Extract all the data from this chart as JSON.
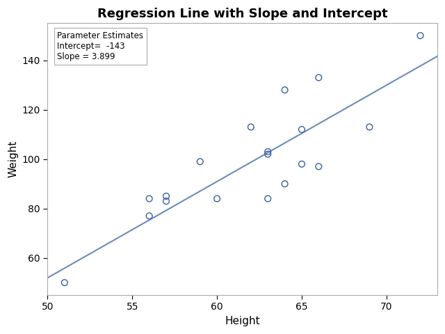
{
  "title": "Regression Line with Slope and Intercept",
  "xlabel": "Height",
  "ylabel": "Weight",
  "intercept": -143,
  "slope": 3.899,
  "scatter_x": [
    51,
    56,
    56,
    57,
    57,
    59,
    60,
    62,
    63,
    63,
    63,
    64,
    64,
    65,
    65,
    66,
    66,
    69,
    72
  ],
  "scatter_y": [
    50,
    77,
    84,
    83,
    85,
    99,
    84,
    113,
    103,
    102,
    84,
    90,
    128,
    98,
    112,
    97,
    133,
    113,
    150
  ],
  "line_color": "#6b8cba",
  "scatter_color": "#3a5fa0",
  "xlim": [
    50,
    73
  ],
  "ylim": [
    45,
    155
  ],
  "xticks": [
    50,
    55,
    60,
    65,
    70
  ],
  "yticks": [
    60,
    80,
    100,
    120,
    140
  ],
  "bg_color": "#ffffff",
  "plot_bg_color": "#ffffff",
  "legend_intercept_label": "Intercept=  -143",
  "legend_slope_label": "Slope = 3.899",
  "legend_title": "Parameter Estimates"
}
